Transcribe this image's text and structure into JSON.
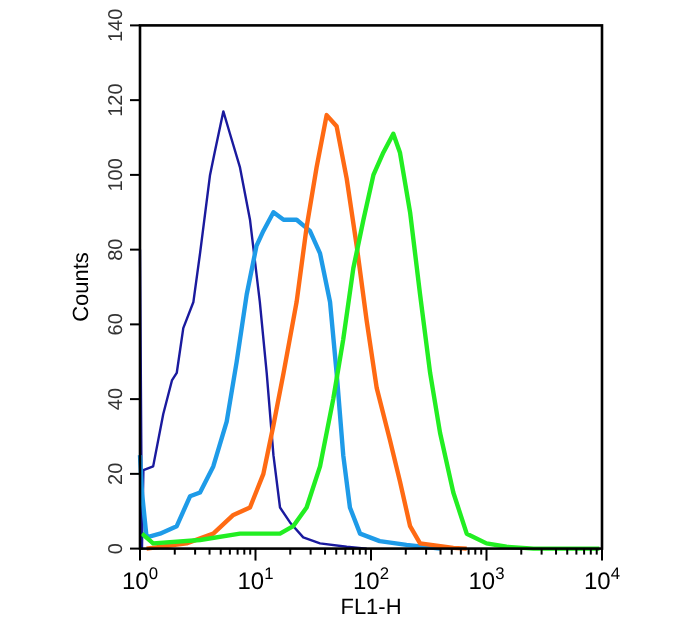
{
  "chart_data": {
    "type": "line",
    "xlabel": "FL1-H",
    "ylabel": "Counts",
    "log": "x",
    "grid": false,
    "line_style": "solid",
    "xlim": [
      1,
      10000
    ],
    "ylim": [
      0,
      140
    ],
    "xticks": [
      {
        "value": 1,
        "label": "10$^{0}$"
      },
      {
        "value": 2,
        "label": null
      },
      {
        "value": 3,
        "label": null
      },
      {
        "value": 4,
        "label": null
      },
      {
        "value": 5,
        "label": null
      },
      {
        "value": 6,
        "label": null
      },
      {
        "value": 7,
        "label": null
      },
      {
        "value": 8,
        "label": null
      },
      {
        "value": 9,
        "label": null
      },
      {
        "value": 10,
        "label": "10$^{1}$"
      },
      {
        "value": 20,
        "label": null
      },
      {
        "value": 30,
        "label": null
      },
      {
        "value": 40,
        "label": null
      },
      {
        "value": 50,
        "label": null
      },
      {
        "value": 60,
        "label": null
      },
      {
        "value": 70,
        "label": null
      },
      {
        "value": 80,
        "label": null
      },
      {
        "value": 90,
        "label": null
      },
      {
        "value": 100,
        "label": "10$^{2}$"
      },
      {
        "value": 200,
        "label": null
      },
      {
        "value": 300,
        "label": null
      },
      {
        "value": 400,
        "label": null
      },
      {
        "value": 500,
        "label": null
      },
      {
        "value": 600,
        "label": null
      },
      {
        "value": 700,
        "label": null
      },
      {
        "value": 800,
        "label": null
      },
      {
        "value": 900,
        "label": null
      },
      {
        "value": 1000,
        "label": "10$^{3}$"
      },
      {
        "value": 2000,
        "label": null
      },
      {
        "value": 3000,
        "label": null
      },
      {
        "value": 4000,
        "label": null
      },
      {
        "value": 5000,
        "label": null
      },
      {
        "value": 6000,
        "label": null
      },
      {
        "value": 7000,
        "label": null
      },
      {
        "value": 8000,
        "label": null
      },
      {
        "value": 9000,
        "label": null
      },
      {
        "value": 10000,
        "label": "10$^{4}$"
      }
    ],
    "yticks": [
      0,
      20,
      40,
      60,
      80,
      100,
      120,
      140
    ],
    "series": [
      {
        "color": "#1a1a9e",
        "x": [
          1,
          1.04,
          1.07,
          1.3,
          1.59,
          1.89,
          2.08,
          2.37,
          2.9,
          3.31,
          4.04,
          4.43,
          5.27,
          6.01,
          7.34,
          8.96,
          10.9,
          12.5,
          14.3,
          16.3,
          19.9,
          25.9,
          36.2,
          61.6,
          91.7
        ],
        "values": [
          80,
          0,
          21,
          22,
          36,
          45,
          47,
          59,
          66,
          79,
          100,
          106,
          117,
          111,
          102,
          88,
          66,
          47,
          25,
          11,
          7,
          3,
          1.4,
          0.5,
          0
        ]
      },
      {
        "color": "#1e9be8",
        "x": [
          1,
          1.04,
          1.14,
          1.49,
          2.08,
          2.71,
          3.31,
          4.31,
          5.63,
          6.87,
          8.39,
          10.2,
          11.7,
          14.3,
          17.5,
          22.7,
          29.6,
          36.2,
          44.2,
          50.4,
          57.5,
          65.7,
          80.4,
          119,
          203,
          396
        ],
        "values": [
          25,
          15,
          3,
          4,
          6,
          14,
          15,
          22,
          34,
          50,
          68,
          81,
          85,
          90,
          88,
          88,
          85,
          79,
          66,
          47,
          25,
          11,
          4,
          2,
          1,
          0
        ]
      },
      {
        "color": "#ff6a13",
        "x": [
          1.14,
          2.53,
          4.31,
          6.43,
          8.96,
          11.7,
          14.3,
          17.5,
          22.7,
          27.7,
          33.8,
          41.3,
          50.4,
          61.6,
          75.2,
          91.7,
          112,
          146,
          178,
          218,
          266,
          516,
          674
        ],
        "values": [
          0,
          1.4,
          4,
          9,
          11,
          20,
          33,
          47,
          66,
          86,
          102,
          116,
          113,
          99,
          81,
          61,
          43,
          29,
          18,
          6,
          1.4,
          0.2,
          0
        ]
      },
      {
        "color": "#22ee22",
        "x": [
          1.04,
          1.3,
          3.31,
          7.34,
          16.3,
          21.2,
          27.7,
          36.2,
          47.1,
          57.5,
          70.3,
          86,
          105,
          128,
          156,
          178,
          218,
          266,
          325,
          396,
          516,
          674,
          1000,
          1491,
          2560,
          9500
        ],
        "values": [
          4,
          1.4,
          2.3,
          4,
          4,
          6,
          11,
          22,
          40,
          56,
          75,
          88,
          100,
          106,
          111,
          106,
          90,
          68,
          47,
          31,
          15,
          4,
          1.4,
          0.5,
          0,
          0
        ]
      }
    ]
  }
}
